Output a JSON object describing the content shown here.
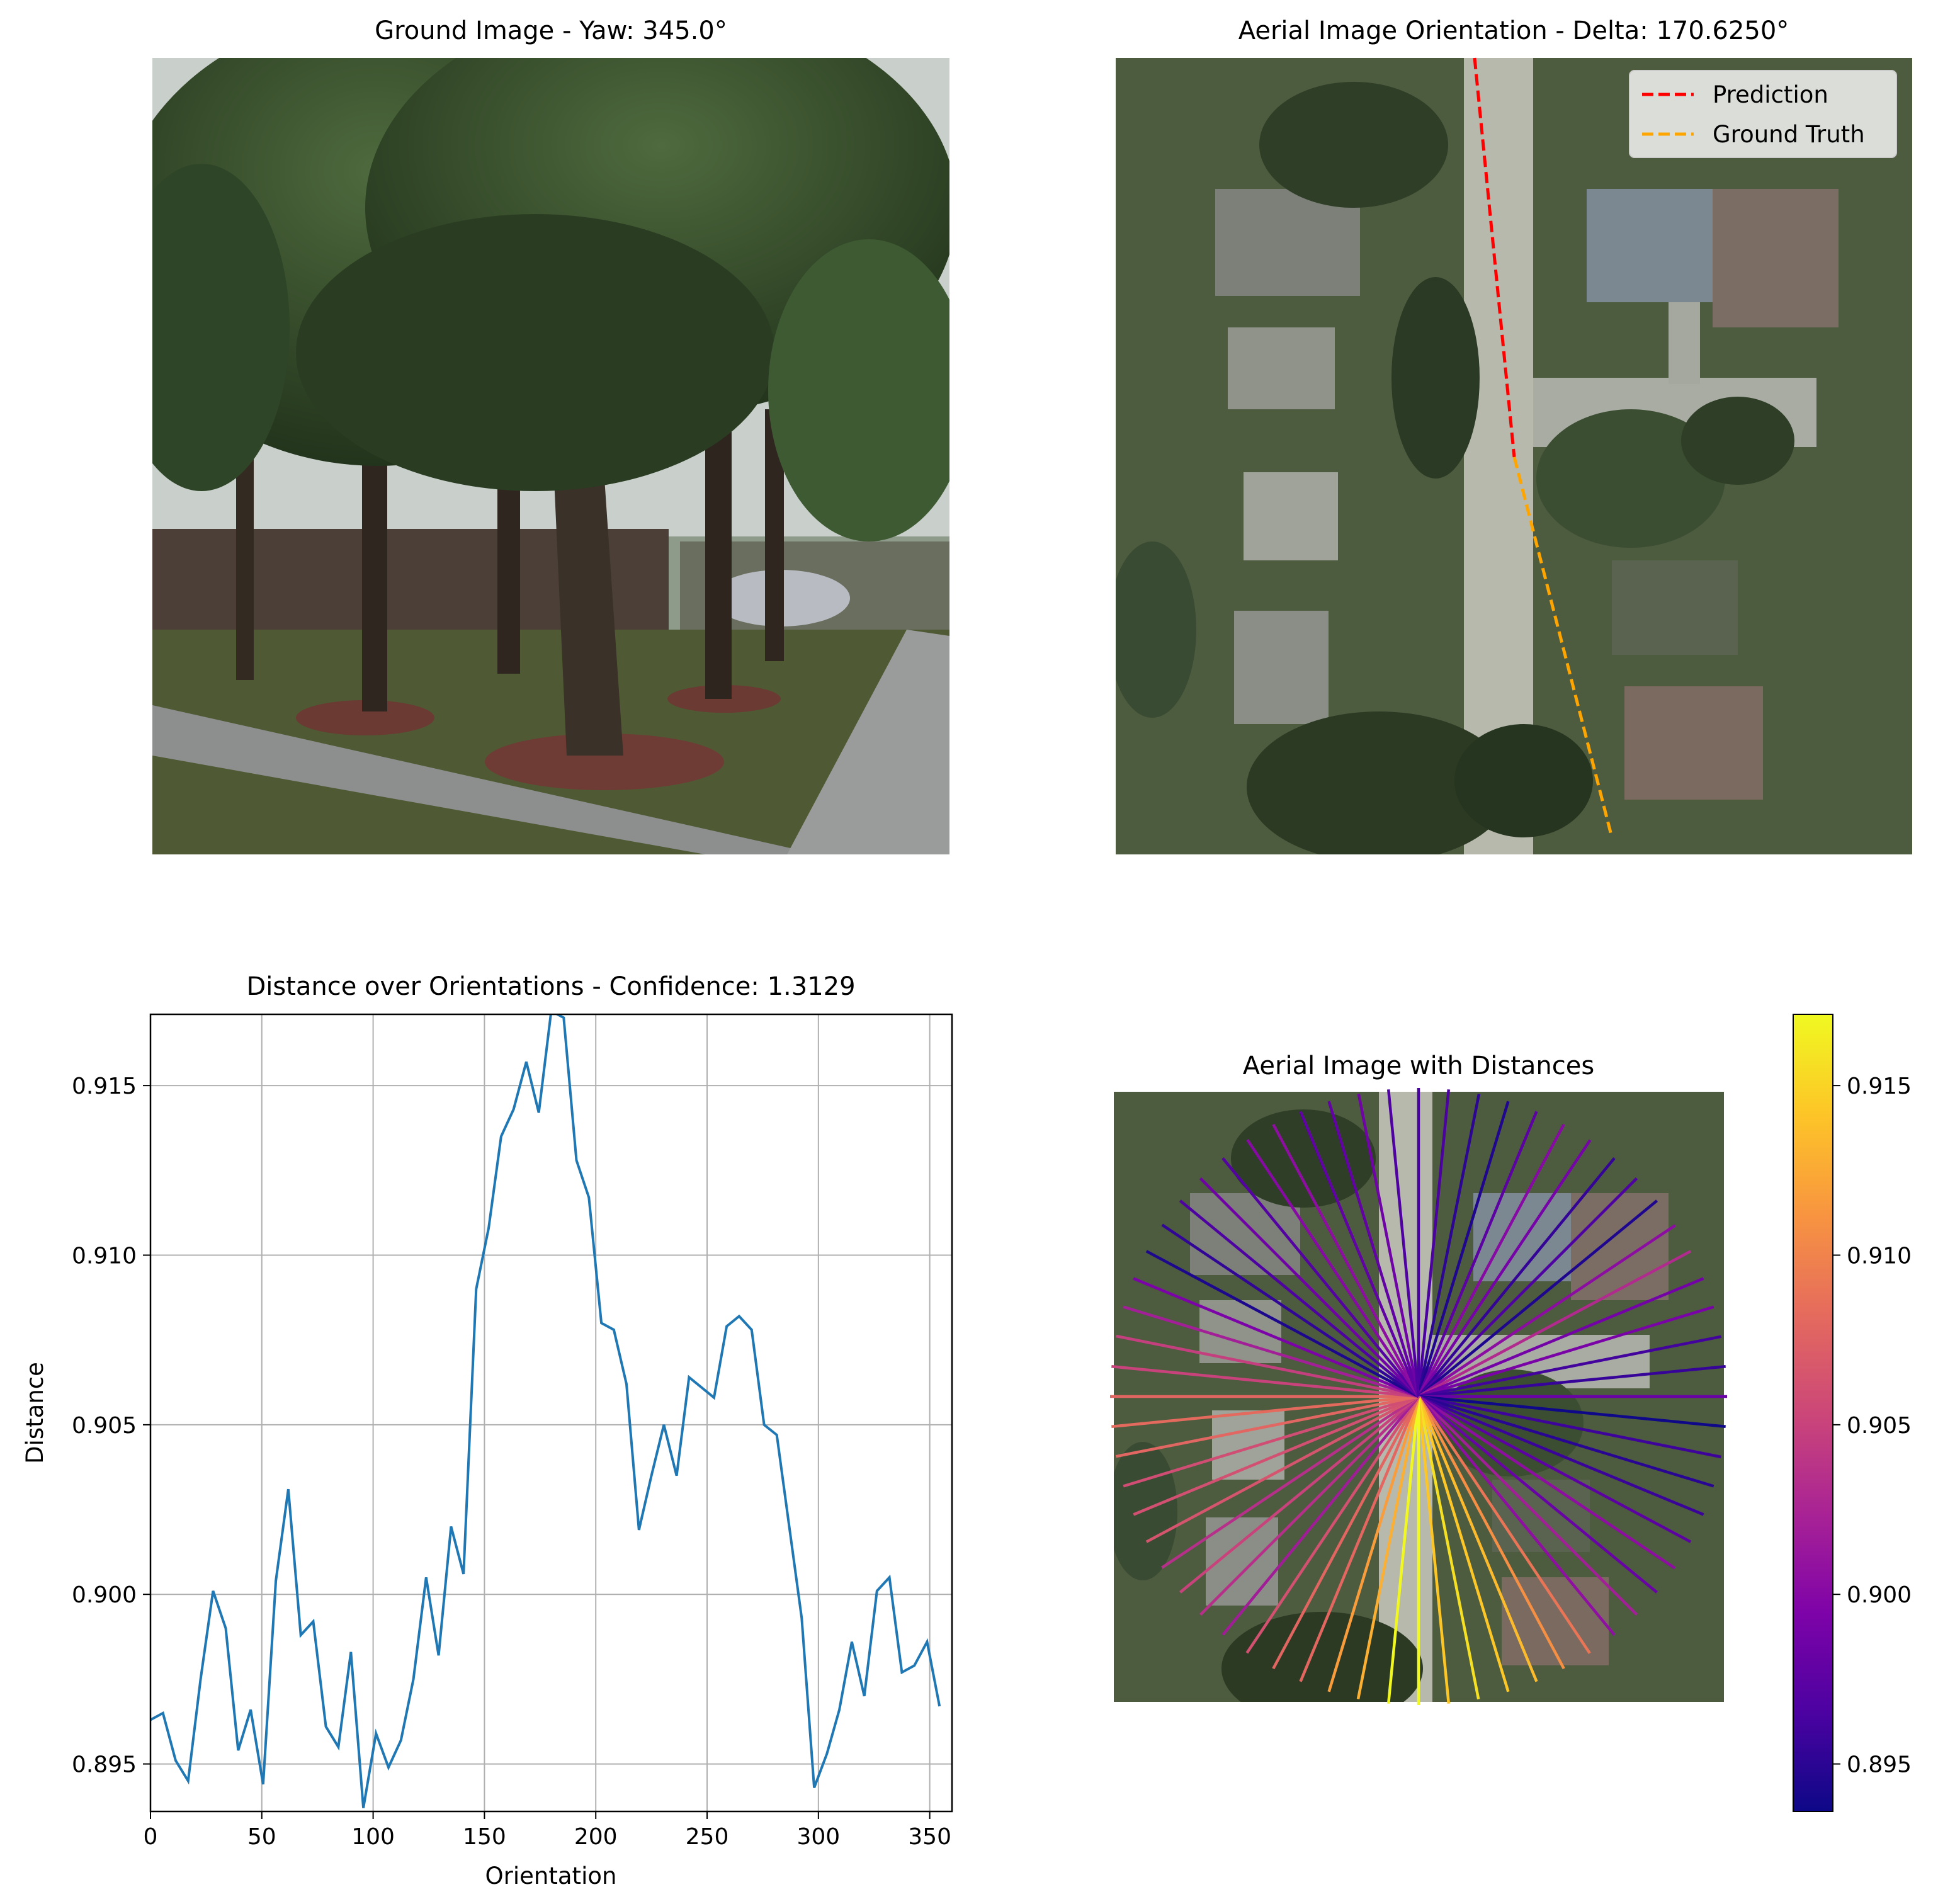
{
  "panels": {
    "ground": {
      "title": "Ground Image - Yaw: 345.0°"
    },
    "aerial": {
      "title": "Aerial Image Orientation - Delta: 170.6250°",
      "legend": {
        "prediction": "Prediction",
        "ground_truth": "Ground Truth",
        "placement": "top-right"
      },
      "colors": {
        "prediction": "#ff0000",
        "ground_truth": "#ffa500"
      }
    },
    "dist_aerial": {
      "title": "Aerial Image with Distances"
    }
  },
  "chart_data": [
    {
      "type": "line",
      "title": "Distance over Orientations - Confidence: 1.3129",
      "xlabel": "Orientation",
      "ylabel": "Distance",
      "xlim": [
        0,
        360
      ],
      "ylim": [
        0.8936,
        0.9171
      ],
      "xticks": [
        "0",
        "50",
        "100",
        "150",
        "200",
        "250",
        "300",
        "350"
      ],
      "yticks": [
        "0.895",
        "0.900",
        "0.905",
        "0.910",
        "0.915"
      ],
      "grid": true,
      "color": "#1f77b4",
      "x": [
        0,
        5.6,
        11.3,
        16.9,
        22.5,
        28.1,
        33.8,
        39.4,
        45,
        50.6,
        56.3,
        61.9,
        67.5,
        73.1,
        78.8,
        84.4,
        90,
        95.6,
        101.3,
        106.9,
        112.5,
        118.1,
        123.8,
        129.4,
        135,
        140.6,
        146.3,
        151.9,
        157.5,
        163.1,
        168.8,
        174.4,
        180,
        185.6,
        191.3,
        196.9,
        202.5,
        208.1,
        213.8,
        219.4,
        225,
        230.6,
        236.3,
        241.9,
        247.5,
        253.1,
        258.8,
        264.4,
        270,
        275.6,
        281.3,
        286.9,
        292.5,
        298.1,
        303.8,
        309.4,
        315,
        320.6,
        326.3,
        331.9,
        337.5,
        343.1,
        348.8,
        354.4
      ],
      "values": [
        0.8963,
        0.8965,
        0.8951,
        0.8945,
        0.8975,
        0.9001,
        0.899,
        0.8954,
        0.8966,
        0.8944,
        0.9004,
        0.9031,
        0.8988,
        0.8992,
        0.8961,
        0.8955,
        0.8983,
        0.8937,
        0.8959,
        0.8949,
        0.8957,
        0.8975,
        0.9005,
        0.8982,
        0.902,
        0.9006,
        0.909,
        0.9108,
        0.9135,
        0.9143,
        0.9157,
        0.9142,
        0.9172,
        0.917,
        0.9128,
        0.9117,
        0.908,
        0.9078,
        0.9062,
        0.9019,
        0.9035,
        0.905,
        0.9035,
        0.9064,
        0.9061,
        0.9058,
        0.9079,
        0.9082,
        0.9078,
        0.905,
        0.9047,
        0.902,
        0.8993,
        0.8943,
        0.8953,
        0.8966,
        0.8986,
        0.897,
        0.9001,
        0.9005,
        0.8977,
        0.8979,
        0.8986,
        0.8967
      ]
    },
    {
      "type": "colorbar",
      "range": [
        0.8936,
        0.9171
      ],
      "ticks": [
        "0.895",
        "0.900",
        "0.905",
        "0.910",
        "0.915"
      ],
      "colormap": "plasma"
    }
  ]
}
